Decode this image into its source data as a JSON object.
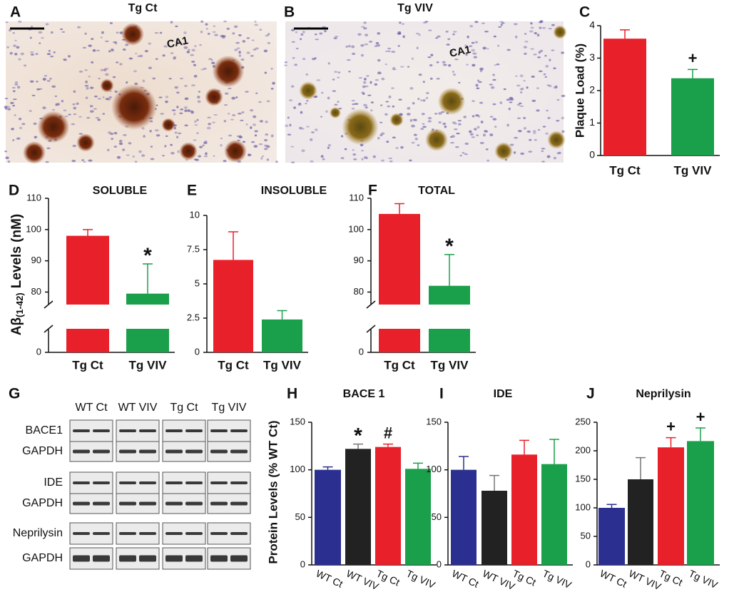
{
  "images": [
    {
      "label": "A",
      "title": "Tg Ct",
      "region": "CA1"
    },
    {
      "label": "B",
      "title": "Tg VIV",
      "region": "CA1"
    }
  ],
  "blot": {
    "label": "G",
    "lanes": [
      "WT Ct",
      "WT VIV",
      "Tg Ct",
      "Tg VIV"
    ],
    "rows": [
      "BACE1",
      "GAPDH",
      "IDE",
      "GAPDH",
      "Neprilysin",
      "GAPDH"
    ]
  },
  "chart_data": [
    {
      "type": "bar",
      "panel": "C",
      "ylabel": "Plaque Load (%)",
      "categories": [
        "Tg Ct",
        "Tg VIV"
      ],
      "values": [
        3.6,
        2.38
      ],
      "errors": [
        0.27,
        0.27
      ],
      "annotations": [
        null,
        "+"
      ],
      "colors": [
        "#e8202a",
        "#1a9f4a"
      ],
      "ylim": [
        0,
        4
      ],
      "yticks": [
        0,
        1,
        2,
        3,
        4
      ]
    },
    {
      "type": "bar",
      "panel": "D",
      "title": "SOLUBLE",
      "ylabel": {
        "symbol": "Aβ",
        "subscript": "(1-42)",
        "text": "Levels (nM)"
      },
      "categories": [
        "Tg Ct",
        "Tg VIV"
      ],
      "values": [
        98,
        79.5
      ],
      "errors": [
        2,
        9.5
      ],
      "annotations": [
        null,
        "*"
      ],
      "colors": [
        "#e8202a",
        "#1a9f4a"
      ],
      "ylim": [
        0,
        110
      ],
      "ybreak": [
        7.5,
        76
      ],
      "yticks": [
        0,
        80,
        90,
        100,
        110
      ]
    },
    {
      "type": "bar",
      "panel": "E",
      "title": "INSOLUBLE",
      "categories": [
        "Tg Ct",
        "Tg VIV"
      ],
      "values": [
        6.75,
        2.4
      ],
      "errors": [
        2.05,
        0.65
      ],
      "colors": [
        "#e8202a",
        "#1a9f4a"
      ],
      "ylim": [
        0,
        10
      ],
      "yticks": [
        0,
        2.5,
        5,
        7.5,
        10
      ]
    },
    {
      "type": "bar",
      "panel": "F",
      "title": "TOTAL",
      "categories": [
        "Tg Ct",
        "Tg VIV"
      ],
      "values": [
        105,
        82
      ],
      "errors": [
        3.3,
        10
      ],
      "annotations": [
        null,
        "*"
      ],
      "colors": [
        "#e8202a",
        "#1a9f4a"
      ],
      "ylim": [
        0,
        110
      ],
      "ybreak": [
        7.5,
        76
      ],
      "yticks": [
        0,
        80,
        90,
        100,
        110
      ]
    },
    {
      "type": "bar",
      "panel": "H",
      "title": "BACE 1",
      "ylabel": "Protein Levels (% WT Ct)",
      "categories": [
        "WT Ct",
        "WT VIV",
        "Tg Ct",
        "Tg VIV"
      ],
      "values": [
        100,
        122,
        124,
        101
      ],
      "errors": [
        3,
        5,
        3,
        6
      ],
      "annotations": [
        null,
        "*",
        "#",
        null
      ],
      "colors": [
        "#2b2f8f",
        "#222222",
        "#e8202a",
        "#1a9f4a"
      ],
      "ylim": [
        0,
        150
      ],
      "yticks": [
        0,
        50,
        100,
        150
      ]
    },
    {
      "type": "bar",
      "panel": "I",
      "title": "IDE",
      "categories": [
        "WT Ct",
        "WT VIV",
        "Tg Ct",
        "Tg VIV"
      ],
      "values": [
        100,
        78,
        116,
        106
      ],
      "errors": [
        14,
        16,
        15,
        26
      ],
      "colors": [
        "#2b2f8f",
        "#222222",
        "#e8202a",
        "#1a9f4a"
      ],
      "ylim": [
        0,
        150
      ],
      "yticks": [
        0,
        50,
        100,
        150
      ]
    },
    {
      "type": "bar",
      "panel": "J",
      "title": "Neprilysin",
      "categories": [
        "WT Ct",
        "WT VIV",
        "Tg Ct",
        "Tg VIV"
      ],
      "values": [
        100,
        150,
        206,
        217
      ],
      "errors": [
        6,
        38,
        17,
        23
      ],
      "annotations": [
        null,
        null,
        "+",
        "+"
      ],
      "colors": [
        "#2b2f8f",
        "#222222",
        "#e8202a",
        "#1a9f4a"
      ],
      "ylim": [
        0,
        250
      ],
      "yticks": [
        0,
        50,
        100,
        150,
        200,
        250
      ]
    }
  ]
}
